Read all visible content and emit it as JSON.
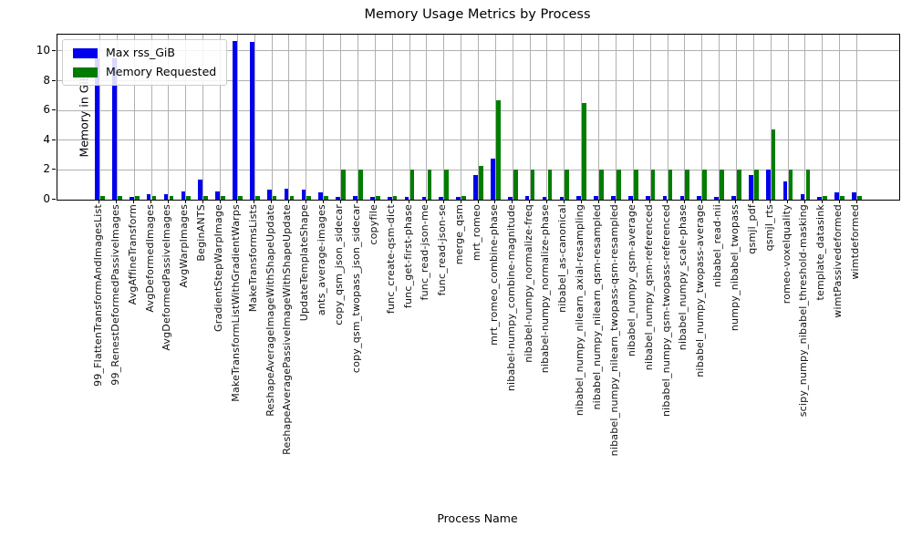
{
  "title": "Memory Usage Metrics by Process",
  "chart_data": {
    "type": "bar",
    "title": "Memory Usage Metrics by Process",
    "xlabel": "Process Name",
    "ylabel": "Memory in GiB",
    "ylim": [
      0,
      11.1
    ],
    "yticks": [
      0,
      2,
      4,
      6,
      8,
      10
    ],
    "grid": true,
    "legend_position": "upper left",
    "bar_colors": {
      "max_rss": "#0000ee",
      "memory_requested": "#007d00"
    },
    "categories": [
      "99_FlattenTransformAndImagesList",
      "99_RenestDeformedPassiveImages",
      "AvgAffineTransform",
      "AvgDeformedImages",
      "AvgDeformedPassiveImages",
      "AvgWarpImages",
      "BeginANTS",
      "GradientStepWarpImage",
      "MakeTransformListWithGradientWarps",
      "MakeTransformsLists",
      "ReshapeAverageImageWithShapeUpdate",
      "ReshapeAveragePassiveImageWithShapeUpdate",
      "UpdateTemplateShape",
      "ants_average-images",
      "copy_qsm_json_sidecar",
      "copy_qsm_twopass_json_sidecar",
      "copyfile",
      "func_create-qsm-dict",
      "func_get-first-phase",
      "func_read-json-me",
      "func_read-json-se",
      "merge_qsm",
      "mrt_romeo",
      "mrt_romeo_combine-phase",
      "nibabel-numpy_combine-magnitude",
      "nibabel-numpy_normalize-freq",
      "nibabel-numpy_normalize-phase",
      "nibabel_as-canonical",
      "nibabel_numpy_nilearn_axial-resampling",
      "nibabel_numpy_nilearn_qsm-resampled",
      "nibabel_numpy_nilearn_twopass-qsm-resampled",
      "nibabel_numpy_qsm-average",
      "nibabel_numpy_qsm-referenced",
      "nibabel_numpy_qsm-twopass-referenced",
      "nibabel_numpy_scale-phase",
      "nibabel_numpy_twopass-average",
      "nibabel_read-nii",
      "numpy_nibabel_twopass",
      "qsmjl_pdf",
      "qsmjl_rts",
      "romeo-voxelquality",
      "scipy_numpy_nibabel_threshold-masking",
      "template_datasink",
      "wimtPassivedeformed",
      "wimtdeformed"
    ],
    "series": [
      {
        "name": "Max rss_GiB",
        "color": "#0000ee",
        "values": [
          9.5,
          9.5,
          0.2,
          0.35,
          0.4,
          0.55,
          1.35,
          0.55,
          10.65,
          10.6,
          0.7,
          0.75,
          0.65,
          0.5,
          0.2,
          0.25,
          0.2,
          0.2,
          0.2,
          0.2,
          0.2,
          0.2,
          1.65,
          2.75,
          0.2,
          0.25,
          0.2,
          0.2,
          0.25,
          0.25,
          0.25,
          0.25,
          0.25,
          0.25,
          0.25,
          0.25,
          0.2,
          0.25,
          1.65,
          2.05,
          1.2,
          0.4,
          0.2,
          0.5,
          0.5
        ]
      },
      {
        "name": "Memory Requested",
        "color": "#007d00",
        "values": [
          0.25,
          0.25,
          0.25,
          0.25,
          0.25,
          0.25,
          0.25,
          0.25,
          0.25,
          0.25,
          0.25,
          0.25,
          0.25,
          0.25,
          2.0,
          2.0,
          0.25,
          0.25,
          2.0,
          2.0,
          2.0,
          0.25,
          2.3,
          6.7,
          2.0,
          2.0,
          2.0,
          2.0,
          6.5,
          2.0,
          2.0,
          2.0,
          2.0,
          2.0,
          2.0,
          2.0,
          2.0,
          2.0,
          2.0,
          4.7,
          2.0,
          2.0,
          0.25,
          0.25,
          0.25
        ]
      }
    ]
  }
}
